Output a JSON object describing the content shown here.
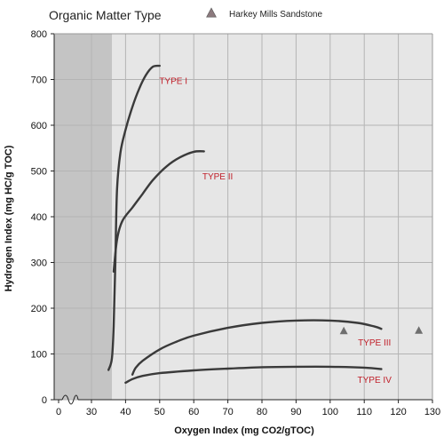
{
  "chart_data": {
    "type": "line",
    "title": "Organic Matter Type",
    "xlabel": "Oxygen Index (mg CO2/gTOC)",
    "ylabel": "Hydrogen Index (mg HC/g TOC)",
    "xlim": [
      0,
      130
    ],
    "ylim": [
      0,
      800
    ],
    "x_ticks": [
      "0",
      "30",
      "40",
      "50",
      "60",
      "70",
      "80",
      "90",
      "100",
      "110",
      "120",
      "130"
    ],
    "y_ticks": [
      "0",
      "100",
      "200",
      "300",
      "400",
      "500",
      "600",
      "700",
      "800"
    ],
    "axis_break": true,
    "grid": true,
    "legend": {
      "position": "top",
      "entries": [
        {
          "name": "Harkey Mills Sandstone",
          "marker": "triangle",
          "color": "#6f6f6f"
        }
      ]
    },
    "series": [
      {
        "name": "TYPE I",
        "points": [
          [
            35,
            65
          ],
          [
            36,
            90
          ],
          [
            36.5,
            160
          ],
          [
            37,
            300
          ],
          [
            37.5,
            460
          ],
          [
            38.5,
            540
          ],
          [
            40,
            590
          ],
          [
            42,
            640
          ],
          [
            44,
            680
          ],
          [
            46,
            710
          ],
          [
            48,
            728
          ],
          [
            50,
            730
          ]
        ]
      },
      {
        "name": "TYPE II",
        "points": [
          [
            36.5,
            280
          ],
          [
            37.5,
            350
          ],
          [
            39,
            390
          ],
          [
            42,
            420
          ],
          [
            45,
            450
          ],
          [
            48,
            480
          ],
          [
            52,
            510
          ],
          [
            56,
            530
          ],
          [
            60,
            542
          ],
          [
            63,
            543
          ]
        ]
      },
      {
        "name": "TYPE III",
        "points": [
          [
            42,
            55
          ],
          [
            43,
            70
          ],
          [
            45,
            85
          ],
          [
            50,
            110
          ],
          [
            55,
            127
          ],
          [
            60,
            140
          ],
          [
            70,
            157
          ],
          [
            80,
            168
          ],
          [
            90,
            173
          ],
          [
            100,
            173
          ],
          [
            108,
            168
          ],
          [
            113,
            160
          ],
          [
            115,
            155
          ]
        ]
      },
      {
        "name": "TYPE IV",
        "points": [
          [
            40,
            37
          ],
          [
            42,
            45
          ],
          [
            45,
            52
          ],
          [
            50,
            58
          ],
          [
            60,
            64
          ],
          [
            70,
            68
          ],
          [
            80,
            71
          ],
          [
            90,
            72
          ],
          [
            100,
            72
          ],
          [
            110,
            70
          ],
          [
            115,
            67
          ]
        ]
      }
    ],
    "markers": [
      {
        "series": "Harkey Mills Sandstone",
        "x": 104,
        "y": 150
      },
      {
        "series": "Harkey Mills Sandstone",
        "x": 126,
        "y": 151
      }
    ],
    "line_color": "#3a3a3a",
    "label_color": "#c0202a",
    "plot_background": "#e6e6e6",
    "shaded_band_color": "#c4c4c4"
  }
}
